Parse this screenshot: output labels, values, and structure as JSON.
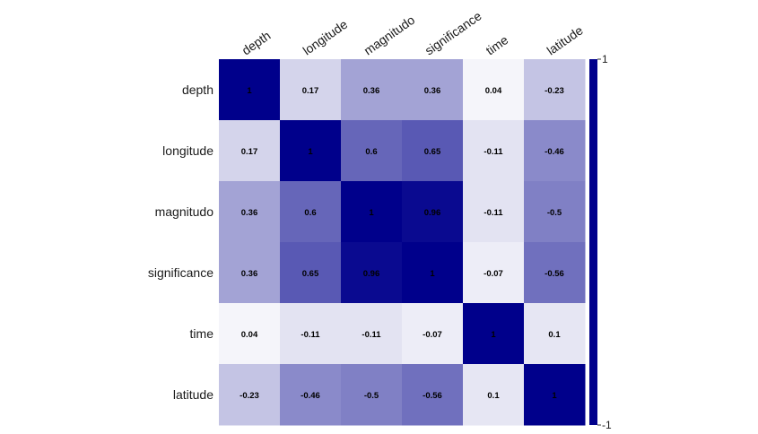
{
  "chart_data": {
    "type": "heatmap",
    "rows": [
      "depth",
      "longitude",
      "magnitudo",
      "significance",
      "time",
      "latitude"
    ],
    "columns": [
      "depth",
      "longitude",
      "magnitudo",
      "significance",
      "time",
      "latitude"
    ],
    "values": [
      [
        1,
        0.17,
        0.36,
        0.36,
        0.04,
        -0.23
      ],
      [
        0.17,
        1,
        0.6,
        0.65,
        -0.11,
        -0.46
      ],
      [
        0.36,
        0.6,
        1,
        0.96,
        -0.11,
        -0.5
      ],
      [
        0.36,
        0.65,
        0.96,
        1,
        -0.07,
        -0.56
      ],
      [
        0.04,
        -0.11,
        -0.11,
        -0.07,
        1,
        0.1
      ],
      [
        -0.23,
        -0.46,
        -0.5,
        -0.56,
        0.1,
        1
      ]
    ],
    "cell_labels": [
      [
        "1",
        "0.17",
        "0.36",
        "0.36",
        "0.04",
        "-0.23"
      ],
      [
        "0.17",
        "1",
        "0.6",
        "0.65",
        "-0.11",
        "-0.46"
      ],
      [
        "0.36",
        "0.6",
        "1",
        "0.96",
        "-0.11",
        "-0.5"
      ],
      [
        "0.36",
        "0.65",
        "0.96",
        "1",
        "-0.07",
        "-0.56"
      ],
      [
        "0.04",
        "-0.11",
        "-0.11",
        "-0.07",
        "1",
        "0.1"
      ],
      [
        "-0.23",
        "-0.46",
        "-0.5",
        "-0.56",
        "0.1",
        "1"
      ]
    ],
    "colorbar": {
      "range": [
        -1,
        1
      ],
      "tick_labels": [
        "1",
        "-1"
      ],
      "color_high": "#00008b",
      "color_low": "#ffffff"
    },
    "column_label_rotation": "diagonal",
    "legend_placement": "right"
  }
}
